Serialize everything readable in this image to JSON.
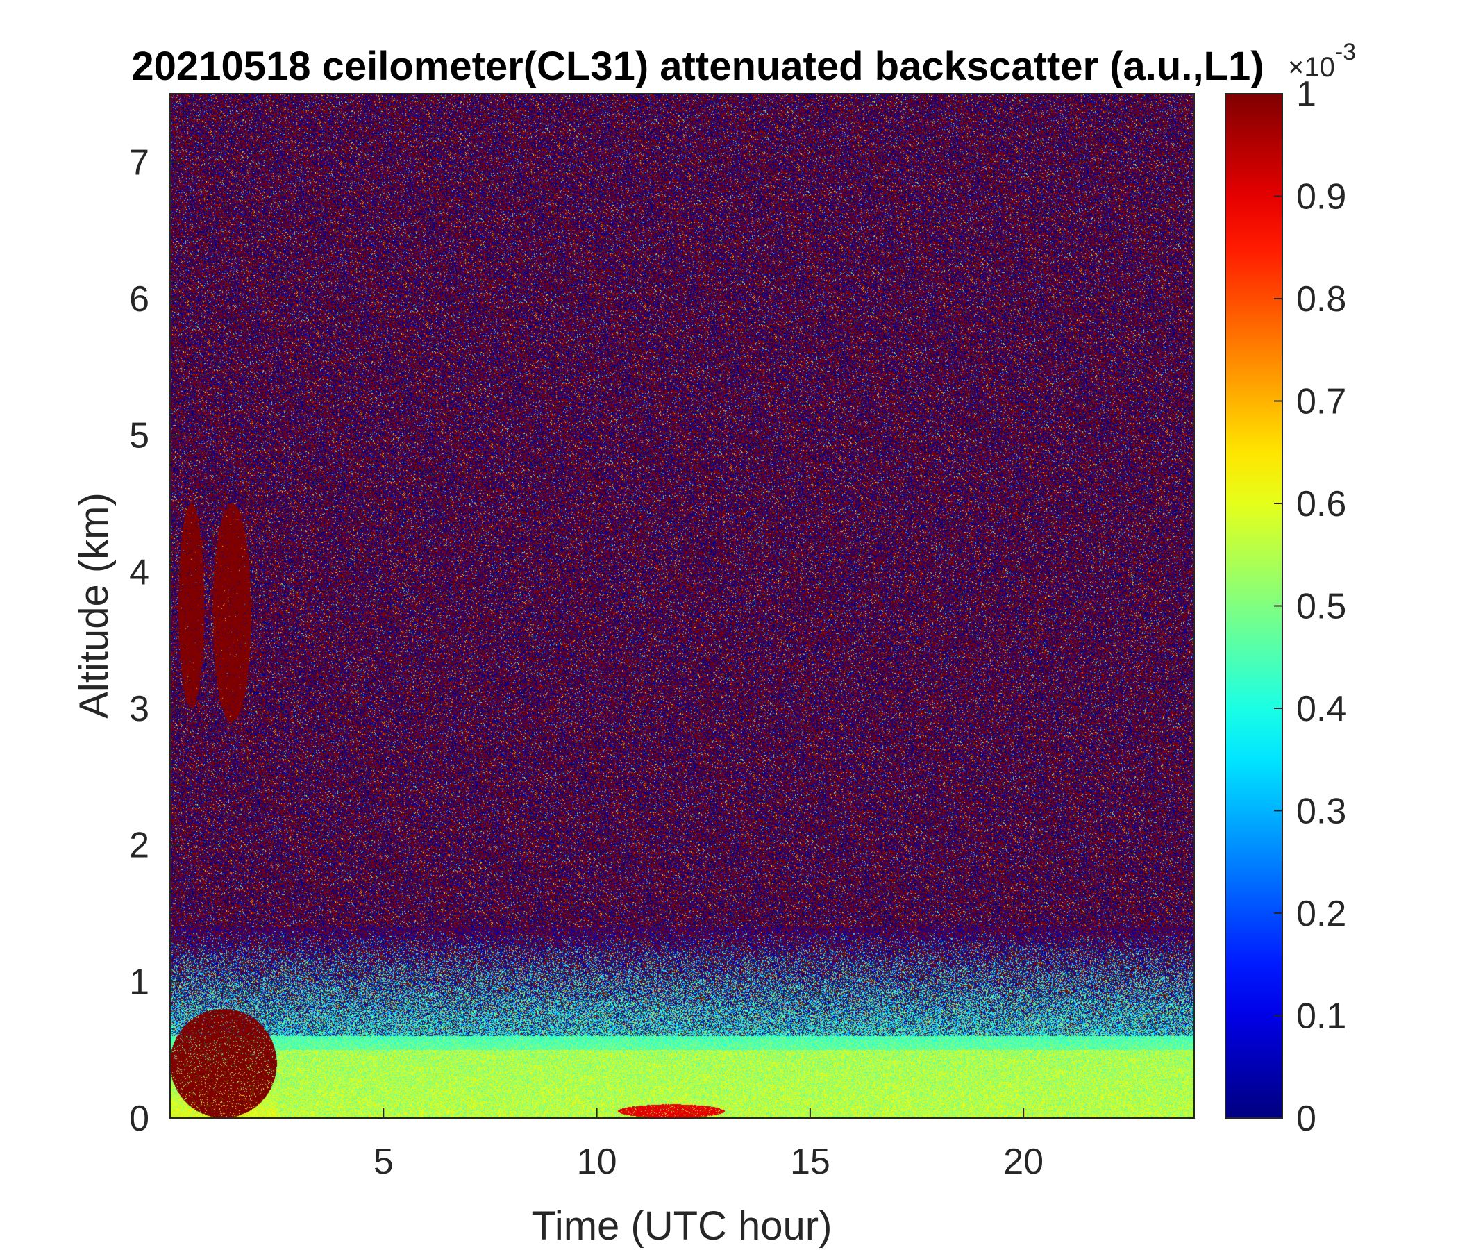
{
  "chart_data": {
    "type": "heatmap",
    "title": "20210518 ceilometer(CL31) attenuated backscatter (a.u.,L1)",
    "xlabel": "Time (UTC hour)",
    "ylabel": "Altitude (km)",
    "xlim": [
      0,
      24
    ],
    "ylim": [
      0,
      7.5
    ],
    "xticks": [
      5,
      10,
      15,
      20
    ],
    "yticks": [
      0,
      1,
      2,
      3,
      4,
      5,
      6,
      7
    ],
    "colorbar": {
      "colormap": "jet",
      "range": [
        0,
        1
      ],
      "ticks": [
        0,
        0.1,
        0.2,
        0.3,
        0.4,
        0.5,
        0.6,
        0.7,
        0.8,
        0.9,
        1
      ],
      "multiplier_base": "×10",
      "multiplier_exponent": "-3"
    },
    "features": [
      {
        "description": "dense aerosol layer",
        "time_range": [
          0,
          2.5
        ],
        "altitude_range": [
          0,
          0.8
        ],
        "value": 1.0
      },
      {
        "description": "elevated aerosol/cloud plume",
        "time_range": [
          1.0,
          1.9
        ],
        "altitude_range": [
          2.9,
          4.5
        ],
        "value": 1.0
      },
      {
        "description": "elevated aerosol/cloud plume",
        "time_range": [
          0.2,
          0.8
        ],
        "altitude_range": [
          3.0,
          4.5
        ],
        "value": 1.0
      },
      {
        "description": "boundary layer aerosol",
        "time_range": [
          2.5,
          24
        ],
        "altitude_range": [
          0,
          0.5
        ],
        "value": 0.55
      },
      {
        "description": "near-surface enhancement",
        "time_range": [
          10.5,
          13
        ],
        "altitude_range": [
          0,
          0.1
        ],
        "value": 0.9
      },
      {
        "description": "noisy free troposphere",
        "time_range": [
          0,
          24
        ],
        "altitude_range": [
          1.5,
          7.5
        ],
        "value": "noise"
      }
    ]
  }
}
